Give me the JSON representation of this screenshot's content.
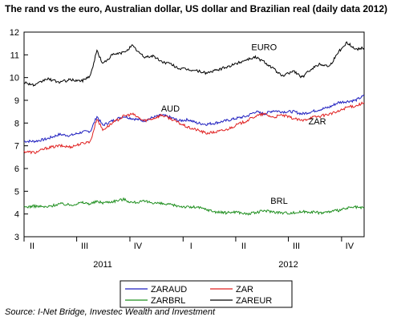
{
  "chart_data": {
    "type": "line",
    "title": "The rand vs the euro, Australian dollar, US dollar and Brazilian real (daily data 2012)",
    "source": "Source: I-Net Bridge, Investec Wealth and Investment",
    "ylim": [
      3,
      12
    ],
    "yticks": [
      "3",
      "4",
      "5",
      "6",
      "7",
      "8",
      "9",
      "10",
      "11",
      "12"
    ],
    "x_range": [
      "2011-04-01",
      "2012-11-09"
    ],
    "quarter_ticks": [
      {
        "label": "II",
        "date": "2011-04-01"
      },
      {
        "label": "III",
        "date": "2011-07-01"
      },
      {
        "label": "IV",
        "date": "2011-10-01"
      },
      {
        "label": "I",
        "date": "2012-01-01"
      },
      {
        "label": "II",
        "date": "2012-04-01"
      },
      {
        "label": "III",
        "date": "2012-07-01"
      },
      {
        "label": "IV",
        "date": "2012-10-01"
      }
    ],
    "year_labels": [
      {
        "label": "2011",
        "date": "2011-08-15"
      },
      {
        "label": "2012",
        "date": "2012-07-01"
      }
    ],
    "line_labels": [
      {
        "text": "EURO",
        "date": "2012-05-20",
        "value": 11.2
      },
      {
        "text": "AUD",
        "date": "2011-12-10",
        "value": 8.5
      },
      {
        "text": "ZAR",
        "date": "2012-08-20",
        "value": 7.95
      },
      {
        "text": "BRL",
        "date": "2012-06-15",
        "value": 4.45
      }
    ],
    "grid": false,
    "legend_position": "bottom-center",
    "legend": [
      "ZARAUD",
      "ZAR",
      "ZARBRL",
      "ZAREUR"
    ],
    "series": [
      {
        "name": "ZARAUD",
        "color": "#1f1fbf",
        "points": [
          [
            "2011-04-01",
            7.2
          ],
          [
            "2011-04-20",
            7.2
          ],
          [
            "2011-05-10",
            7.3
          ],
          [
            "2011-06-01",
            7.5
          ],
          [
            "2011-06-20",
            7.45
          ],
          [
            "2011-07-10",
            7.6
          ],
          [
            "2011-07-25",
            7.65
          ],
          [
            "2011-08-05",
            8.3
          ],
          [
            "2011-08-15",
            7.9
          ],
          [
            "2011-09-01",
            8.1
          ],
          [
            "2011-09-20",
            8.3
          ],
          [
            "2011-10-05",
            8.2
          ],
          [
            "2011-10-25",
            8.1
          ],
          [
            "2011-11-10",
            8.25
          ],
          [
            "2011-11-25",
            8.35
          ],
          [
            "2011-12-10",
            8.25
          ],
          [
            "2011-12-25",
            8.1
          ],
          [
            "2012-01-10",
            8.15
          ],
          [
            "2012-01-25",
            8.0
          ],
          [
            "2012-02-10",
            7.95
          ],
          [
            "2012-02-25",
            8.0
          ],
          [
            "2012-03-15",
            8.1
          ],
          [
            "2012-04-01",
            8.2
          ],
          [
            "2012-04-20",
            8.3
          ],
          [
            "2012-05-05",
            8.5
          ],
          [
            "2012-05-20",
            8.4
          ],
          [
            "2012-06-05",
            8.55
          ],
          [
            "2012-06-20",
            8.5
          ],
          [
            "2012-07-10",
            8.5
          ],
          [
            "2012-07-25",
            8.4
          ],
          [
            "2012-08-10",
            8.5
          ],
          [
            "2012-08-25",
            8.6
          ],
          [
            "2012-09-10",
            8.7
          ],
          [
            "2012-09-25",
            8.9
          ],
          [
            "2012-10-10",
            8.95
          ],
          [
            "2012-10-25",
            9.0
          ],
          [
            "2012-11-09",
            9.2
          ]
        ]
      },
      {
        "name": "ZAR",
        "color": "#e02020",
        "points": [
          [
            "2011-04-01",
            6.75
          ],
          [
            "2011-04-20",
            6.7
          ],
          [
            "2011-05-10",
            6.9
          ],
          [
            "2011-06-01",
            7.0
          ],
          [
            "2011-06-20",
            6.95
          ],
          [
            "2011-07-10",
            7.1
          ],
          [
            "2011-07-25",
            7.2
          ],
          [
            "2011-08-05",
            8.2
          ],
          [
            "2011-08-15",
            7.7
          ],
          [
            "2011-09-01",
            8.0
          ],
          [
            "2011-09-20",
            8.3
          ],
          [
            "2011-10-05",
            8.4
          ],
          [
            "2011-10-25",
            8.1
          ],
          [
            "2011-11-10",
            8.2
          ],
          [
            "2011-11-25",
            8.35
          ],
          [
            "2011-12-10",
            8.2
          ],
          [
            "2011-12-25",
            8.0
          ],
          [
            "2012-01-10",
            7.8
          ],
          [
            "2012-01-25",
            7.7
          ],
          [
            "2012-02-10",
            7.55
          ],
          [
            "2012-02-25",
            7.6
          ],
          [
            "2012-03-15",
            7.7
          ],
          [
            "2012-04-01",
            7.9
          ],
          [
            "2012-04-20",
            8.1
          ],
          [
            "2012-05-05",
            8.3
          ],
          [
            "2012-05-20",
            8.4
          ],
          [
            "2012-06-05",
            8.25
          ],
          [
            "2012-06-20",
            8.35
          ],
          [
            "2012-07-10",
            8.2
          ],
          [
            "2012-07-25",
            8.1
          ],
          [
            "2012-08-10",
            8.25
          ],
          [
            "2012-08-25",
            8.3
          ],
          [
            "2012-09-10",
            8.4
          ],
          [
            "2012-09-25",
            8.5
          ],
          [
            "2012-10-10",
            8.7
          ],
          [
            "2012-10-25",
            8.75
          ],
          [
            "2012-11-09",
            8.9
          ]
        ]
      },
      {
        "name": "ZARBRL",
        "color": "#1f8f1f",
        "points": [
          [
            "2011-04-01",
            4.3
          ],
          [
            "2011-04-20",
            4.35
          ],
          [
            "2011-05-10",
            4.3
          ],
          [
            "2011-06-01",
            4.45
          ],
          [
            "2011-06-20",
            4.4
          ],
          [
            "2011-07-10",
            4.5
          ],
          [
            "2011-07-25",
            4.45
          ],
          [
            "2011-08-05",
            4.55
          ],
          [
            "2011-08-15",
            4.5
          ],
          [
            "2011-09-01",
            4.55
          ],
          [
            "2011-09-20",
            4.65
          ],
          [
            "2011-10-05",
            4.5
          ],
          [
            "2011-10-25",
            4.55
          ],
          [
            "2011-11-10",
            4.5
          ],
          [
            "2011-11-25",
            4.45
          ],
          [
            "2011-12-10",
            4.4
          ],
          [
            "2011-12-25",
            4.35
          ],
          [
            "2012-01-10",
            4.3
          ],
          [
            "2012-01-25",
            4.3
          ],
          [
            "2012-02-10",
            4.2
          ],
          [
            "2012-02-25",
            4.1
          ],
          [
            "2012-03-15",
            4.05
          ],
          [
            "2012-04-01",
            4.1
          ],
          [
            "2012-04-20",
            4.0
          ],
          [
            "2012-05-05",
            4.05
          ],
          [
            "2012-05-20",
            4.15
          ],
          [
            "2012-06-05",
            4.1
          ],
          [
            "2012-06-20",
            4.05
          ],
          [
            "2012-07-10",
            4.05
          ],
          [
            "2012-07-25",
            4.1
          ],
          [
            "2012-08-10",
            4.1
          ],
          [
            "2012-08-25",
            4.05
          ],
          [
            "2012-09-10",
            4.1
          ],
          [
            "2012-09-25",
            4.15
          ],
          [
            "2012-10-10",
            4.25
          ],
          [
            "2012-10-25",
            4.3
          ],
          [
            "2012-11-09",
            4.25
          ]
        ]
      },
      {
        "name": "ZAREUR",
        "color": "#000000",
        "points": [
          [
            "2011-04-01",
            9.8
          ],
          [
            "2011-04-20",
            9.65
          ],
          [
            "2011-05-10",
            9.95
          ],
          [
            "2011-06-01",
            9.8
          ],
          [
            "2011-06-20",
            9.9
          ],
          [
            "2011-07-10",
            9.85
          ],
          [
            "2011-07-25",
            10.1
          ],
          [
            "2011-08-05",
            11.2
          ],
          [
            "2011-08-15",
            10.6
          ],
          [
            "2011-09-01",
            11.0
          ],
          [
            "2011-09-20",
            11.1
          ],
          [
            "2011-10-05",
            11.4
          ],
          [
            "2011-10-25",
            10.9
          ],
          [
            "2011-11-10",
            10.95
          ],
          [
            "2011-11-25",
            10.7
          ],
          [
            "2011-12-10",
            10.6
          ],
          [
            "2011-12-25",
            10.4
          ],
          [
            "2012-01-10",
            10.35
          ],
          [
            "2012-01-25",
            10.3
          ],
          [
            "2012-02-10",
            10.2
          ],
          [
            "2012-02-25",
            10.3
          ],
          [
            "2012-03-15",
            10.45
          ],
          [
            "2012-04-01",
            10.6
          ],
          [
            "2012-04-20",
            10.8
          ],
          [
            "2012-05-05",
            10.9
          ],
          [
            "2012-05-20",
            10.7
          ],
          [
            "2012-06-05",
            10.4
          ],
          [
            "2012-06-20",
            10.05
          ],
          [
            "2012-07-10",
            10.3
          ],
          [
            "2012-07-25",
            10.0
          ],
          [
            "2012-08-10",
            10.4
          ],
          [
            "2012-08-25",
            10.6
          ],
          [
            "2012-09-10",
            10.5
          ],
          [
            "2012-09-25",
            11.1
          ],
          [
            "2012-10-10",
            11.55
          ],
          [
            "2012-10-25",
            11.25
          ],
          [
            "2012-11-09",
            11.3
          ]
        ]
      }
    ]
  }
}
